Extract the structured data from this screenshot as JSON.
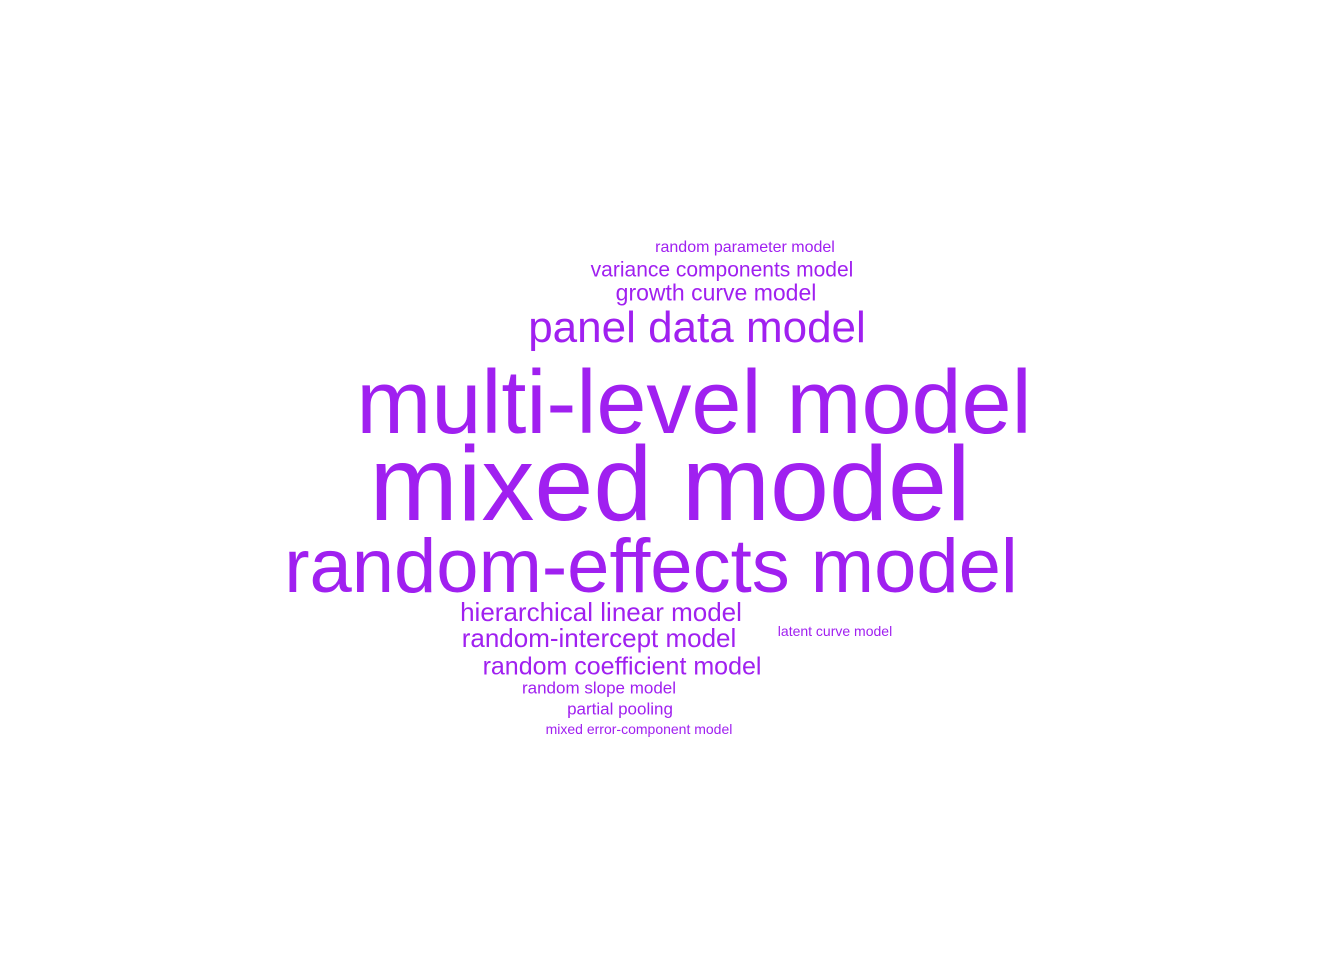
{
  "word_color": "#a020f0",
  "words": [
    {
      "text": "random parameter model",
      "color": "#a020f0"
    },
    {
      "text": "variance components model",
      "color": "#a020f0"
    },
    {
      "text": "growth curve model",
      "color": "#a020f0"
    },
    {
      "text": "panel data model",
      "color": "#a020f0"
    },
    {
      "text": "multi-level model",
      "color": "#a020f0"
    },
    {
      "text": "mixed model",
      "color": "#a020f0"
    },
    {
      "text": "random-effects model",
      "color": "#a020f0"
    },
    {
      "text": "hierarchical linear model",
      "color": "#a020f0"
    },
    {
      "text": "random-intercept model",
      "color": "#a020f0"
    },
    {
      "text": "latent curve model",
      "color": "#a020f0"
    },
    {
      "text": "random coefficient model",
      "color": "#a020f0"
    },
    {
      "text": "random slope model",
      "color": "#a020f0"
    },
    {
      "text": "partial pooling",
      "color": "#a020f0"
    },
    {
      "text": "mixed error-component model",
      "color": "#a020f0"
    }
  ]
}
